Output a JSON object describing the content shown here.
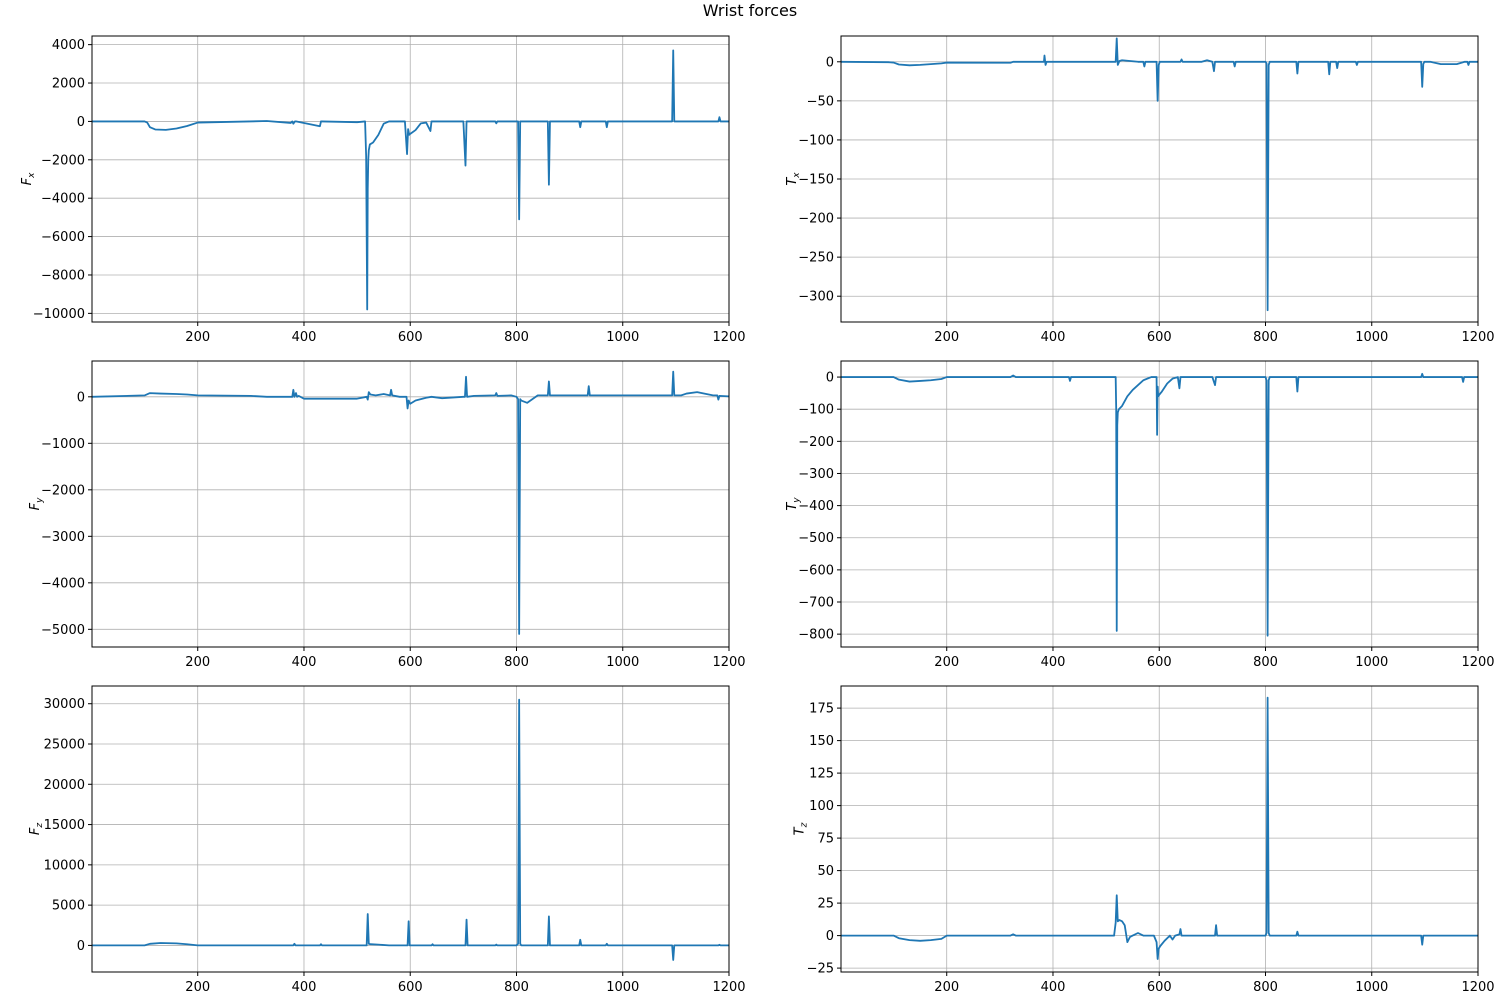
{
  "figure": {
    "title": "Wrist forces",
    "line_color": "#1f77b4",
    "grid_color": "#b0b0b0"
  },
  "chart_data": [
    {
      "type": "line",
      "id": "fx",
      "ylabel": "F",
      "ylabel_sub": "x",
      "xlim": [
        1,
        1200
      ],
      "ylim": [
        -10450,
        4450
      ],
      "xticks": [
        200,
        400,
        600,
        800,
        1000,
        1200
      ],
      "yticks": [
        -10000,
        -8000,
        -6000,
        -4000,
        -2000,
        0,
        2000,
        4000
      ],
      "grid": true,
      "x": [
        1,
        100,
        105,
        110,
        120,
        140,
        160,
        180,
        200,
        330,
        375,
        378,
        380,
        383,
        385,
        430,
        432,
        434,
        500,
        515,
        517,
        519,
        520,
        521,
        522,
        524,
        530,
        540,
        550,
        560,
        570,
        580,
        590,
        594,
        596,
        598,
        600,
        610,
        620,
        630,
        638,
        640,
        642,
        700,
        704,
        706,
        708,
        760,
        762,
        764,
        800,
        803,
        805,
        807,
        809,
        840,
        859,
        861,
        863,
        900,
        918,
        920,
        922,
        968,
        970,
        972,
        1000,
        1093,
        1095,
        1097,
        1099,
        1120,
        1170,
        1180,
        1182,
        1184,
        1200
      ],
      "y": [
        0,
        0,
        -60,
        -300,
        -420,
        -440,
        -370,
        -240,
        -60,
        20,
        -80,
        0,
        -120,
        0,
        0,
        -250,
        0,
        0,
        -40,
        0,
        -1800,
        -9800,
        -3500,
        -2000,
        -1500,
        -1200,
        -1100,
        -700,
        -120,
        0,
        0,
        0,
        0,
        -1700,
        -400,
        -700,
        -650,
        -450,
        -100,
        -60,
        -500,
        0,
        0,
        0,
        -2300,
        0,
        0,
        0,
        -100,
        0,
        0,
        0,
        -5100,
        0,
        0,
        0,
        0,
        -3300,
        0,
        0,
        0,
        -300,
        0,
        0,
        -300,
        0,
        0,
        0,
        3700,
        0,
        0,
        0,
        0,
        0,
        220,
        0,
        0
      ]
    },
    {
      "type": "line",
      "id": "tx",
      "ylabel": "T",
      "ylabel_sub": "x",
      "xlim": [
        1,
        1200
      ],
      "ylim": [
        -333,
        33
      ],
      "xticks": [
        200,
        400,
        600,
        800,
        1000,
        1200
      ],
      "yticks": [
        -300,
        -250,
        -200,
        -150,
        -100,
        -50,
        0
      ],
      "grid": true,
      "x": [
        1,
        90,
        100,
        110,
        130,
        150,
        170,
        190,
        200,
        320,
        325,
        330,
        383,
        384,
        386,
        388,
        390,
        392,
        500,
        518,
        520,
        522,
        525,
        530,
        560,
        570,
        572,
        574,
        595,
        597,
        599,
        601,
        640,
        642,
        644,
        680,
        690,
        700,
        703,
        705,
        707,
        740,
        742,
        744,
        800,
        802,
        804,
        806,
        808,
        858,
        860,
        862,
        918,
        920,
        922,
        933,
        935,
        937,
        970,
        972,
        974,
        1093,
        1095,
        1097,
        1099,
        1110,
        1130,
        1160,
        1175,
        1180,
        1182,
        1184,
        1190,
        1200
      ],
      "y": [
        0,
        -0.5,
        -1,
        -3.5,
        -4.5,
        -4,
        -3,
        -2,
        -1,
        -1.2,
        0,
        0,
        0,
        8,
        -4,
        0,
        0,
        0,
        0,
        0,
        30,
        -4,
        1,
        2,
        0,
        0,
        -6,
        0,
        0,
        -50,
        -4,
        0,
        0,
        3,
        0,
        0,
        2,
        0,
        -12,
        0,
        0,
        0,
        -6,
        0,
        0,
        -2,
        -318,
        -4,
        0,
        0,
        -15,
        0,
        0,
        -16,
        0,
        0,
        -8,
        0,
        0,
        -4,
        0,
        0,
        -32,
        -3,
        0,
        0,
        -3,
        -3,
        0,
        0,
        -4,
        0,
        0,
        0
      ]
    },
    {
      "type": "line",
      "id": "fy",
      "ylabel": "F",
      "ylabel_sub": "y",
      "xlim": [
        1,
        1200
      ],
      "ylim": [
        -5380,
        770
      ],
      "xticks": [
        200,
        400,
        600,
        800,
        1000,
        1200
      ],
      "yticks": [
        -5000,
        -4000,
        -3000,
        -2000,
        -1000,
        0
      ],
      "grid": true,
      "x": [
        1,
        100,
        110,
        130,
        160,
        180,
        200,
        300,
        330,
        378,
        380,
        382,
        385,
        387,
        390,
        400,
        500,
        518,
        520,
        522,
        525,
        535,
        550,
        562,
        564,
        566,
        580,
        593,
        595,
        597,
        600,
        610,
        620,
        630,
        640,
        660,
        700,
        703,
        705,
        707,
        720,
        760,
        762,
        764,
        790,
        800,
        803,
        805,
        807,
        809,
        820,
        840,
        859,
        861,
        863,
        900,
        934,
        936,
        938,
        1000,
        1060,
        1093,
        1095,
        1097,
        1100,
        1110,
        1120,
        1140,
        1170,
        1178,
        1180,
        1182,
        1200
      ],
      "y": [
        0,
        30,
        80,
        70,
        60,
        50,
        30,
        20,
        0,
        0,
        150,
        0,
        80,
        0,
        20,
        -40,
        -40,
        0,
        -60,
        100,
        50,
        30,
        60,
        30,
        150,
        30,
        0,
        0,
        -250,
        -80,
        -150,
        -80,
        -50,
        -20,
        0,
        -30,
        0,
        0,
        430,
        0,
        20,
        30,
        80,
        20,
        30,
        0,
        -50,
        -5100,
        -50,
        -80,
        -130,
        30,
        30,
        330,
        30,
        30,
        30,
        230,
        30,
        30,
        30,
        30,
        540,
        30,
        30,
        30,
        70,
        100,
        30,
        30,
        -60,
        20,
        10
      ]
    },
    {
      "type": "line",
      "id": "ty",
      "ylabel": "T",
      "ylabel_sub": "y",
      "xlim": [
        1,
        1200
      ],
      "ylim": [
        -840,
        50
      ],
      "xticks": [
        200,
        400,
        600,
        800,
        1000,
        1200
      ],
      "yticks": [
        -800,
        -700,
        -600,
        -500,
        -400,
        -300,
        -200,
        -100,
        0
      ],
      "grid": true,
      "x": [
        1,
        100,
        110,
        130,
        150,
        170,
        190,
        200,
        320,
        325,
        330,
        430,
        432,
        434,
        518,
        519,
        520,
        521,
        522,
        524,
        530,
        540,
        550,
        570,
        585,
        595,
        596,
        597,
        598,
        600,
        605,
        615,
        625,
        635,
        638,
        640,
        642,
        700,
        705,
        707,
        709,
        800,
        802,
        804,
        806,
        808,
        858,
        860,
        862,
        1000,
        1093,
        1095,
        1097,
        1170,
        1172,
        1174,
        1200
      ],
      "y": [
        0,
        0,
        -8,
        -14,
        -12,
        -10,
        -6,
        0,
        0,
        5,
        0,
        0,
        -12,
        0,
        0,
        -100,
        -790,
        -150,
        -110,
        -100,
        -90,
        -60,
        -40,
        -10,
        0,
        0,
        -180,
        -30,
        -60,
        -55,
        -45,
        -20,
        -5,
        0,
        -35,
        0,
        0,
        0,
        -25,
        0,
        0,
        0,
        -10,
        -805,
        -10,
        0,
        0,
        -45,
        0,
        0,
        0,
        10,
        0,
        0,
        -15,
        0,
        0
      ]
    },
    {
      "type": "line",
      "id": "fz",
      "ylabel": "F",
      "ylabel_sub": "z",
      "xlim": [
        1,
        1200
      ],
      "ylim": [
        -3300,
        32200
      ],
      "xticks": [
        200,
        400,
        600,
        800,
        1000,
        1200
      ],
      "yticks": [
        0,
        5000,
        10000,
        15000,
        20000,
        25000,
        30000
      ],
      "grid": true,
      "x": [
        1,
        100,
        110,
        130,
        160,
        180,
        200,
        300,
        380,
        382,
        384,
        430,
        432,
        434,
        518,
        520,
        522,
        525,
        540,
        560,
        580,
        595,
        597,
        599,
        640,
        642,
        644,
        704,
        706,
        708,
        760,
        762,
        764,
        800,
        803,
        805,
        807,
        809,
        859,
        861,
        863,
        918,
        920,
        922,
        968,
        970,
        972,
        1000,
        1093,
        1095,
        1097,
        1180,
        1182,
        1184,
        1200
      ],
      "y": [
        0,
        0,
        200,
        300,
        250,
        150,
        0,
        0,
        0,
        200,
        0,
        0,
        150,
        0,
        0,
        3900,
        200,
        150,
        100,
        0,
        0,
        0,
        3000,
        0,
        0,
        150,
        0,
        0,
        3200,
        0,
        0,
        100,
        0,
        0,
        200,
        30500,
        200,
        0,
        0,
        3600,
        0,
        0,
        700,
        0,
        0,
        200,
        0,
        0,
        0,
        -1800,
        0,
        0,
        80,
        0,
        0
      ]
    },
    {
      "type": "line",
      "id": "tz",
      "ylabel": "T",
      "ylabel_sub": "z",
      "xlim": [
        1,
        1200
      ],
      "ylim": [
        -28,
        192
      ],
      "xticks": [
        200,
        400,
        600,
        800,
        1000,
        1200
      ],
      "yticks": [
        -25,
        0,
        25,
        50,
        75,
        100,
        125,
        150,
        175
      ],
      "grid": true,
      "x": [
        1,
        100,
        110,
        130,
        150,
        170,
        190,
        200,
        320,
        325,
        330,
        515,
        518,
        520,
        522,
        525,
        530,
        535,
        540,
        545,
        550,
        560,
        570,
        590,
        595,
        597,
        599,
        602,
        610,
        620,
        625,
        630,
        638,
        640,
        642,
        700,
        705,
        707,
        709,
        800,
        802,
        804,
        806,
        808,
        858,
        860,
        862,
        1000,
        1093,
        1095,
        1097,
        1120,
        1200
      ],
      "y": [
        0,
        0,
        -2,
        -3.5,
        -4,
        -3.5,
        -2.5,
        0,
        0,
        1,
        0,
        0,
        10,
        31,
        11,
        12,
        11,
        8,
        -5,
        -1,
        0,
        2,
        0,
        0,
        -5,
        -18,
        -10,
        -8,
        -4,
        0,
        -3,
        0,
        1,
        5,
        0,
        0,
        0,
        8,
        0,
        0,
        2,
        183,
        2,
        0,
        0,
        3,
        0,
        0,
        0,
        -7,
        0,
        0,
        0
      ]
    }
  ]
}
